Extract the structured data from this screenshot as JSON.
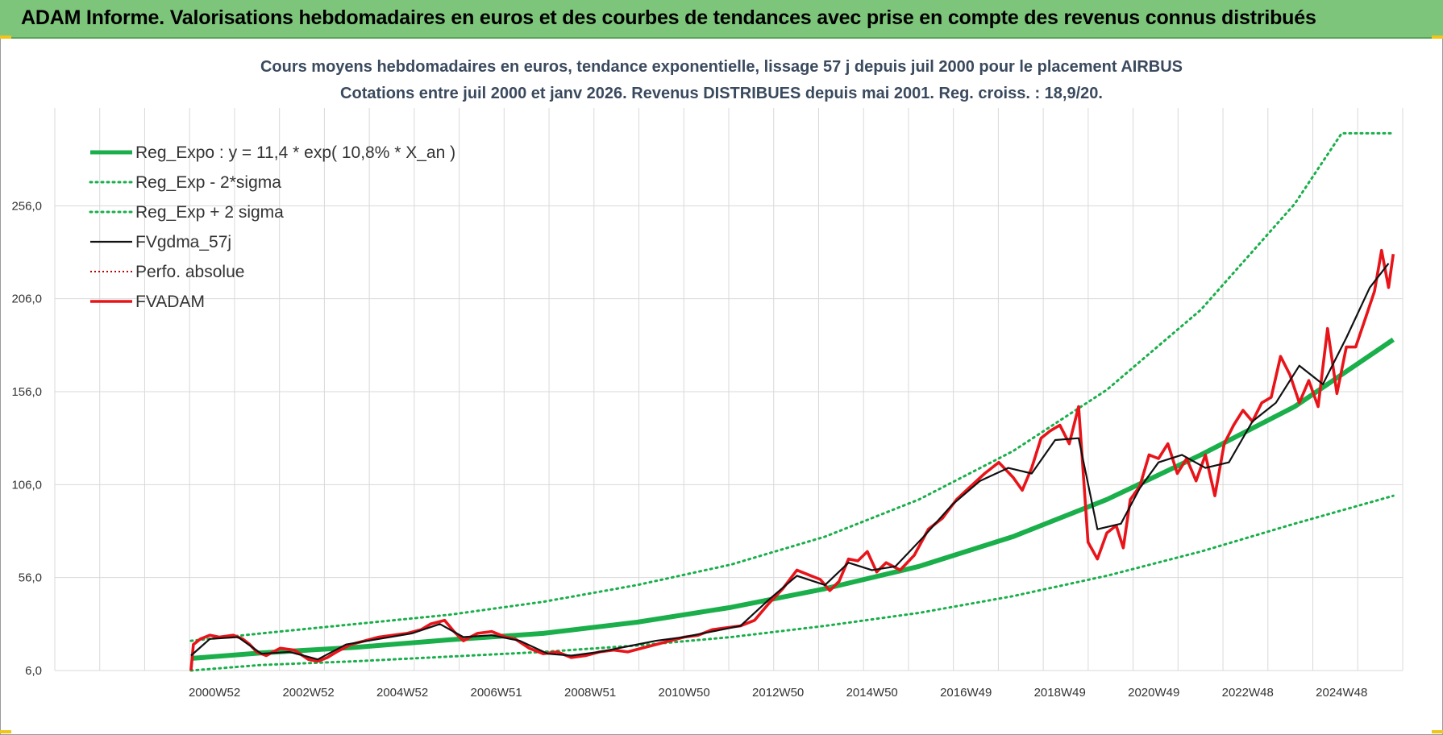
{
  "header": {
    "title": "ADAM Informe. Valorisations hebdomadaires en euros et des courbes de tendances avec prise en compte des revenus connus distribués"
  },
  "colors": {
    "header_bg": "#7dc57a",
    "trend": "#1aaf4b",
    "fvadam": "#e8141a",
    "moving_avg": "#111111",
    "perfo": "#c00000",
    "grid": "#d9d9d9"
  },
  "chart_data": {
    "type": "line",
    "title": "Cours moyens hebdomadaires en euros, tendance exponentielle, lissage 57 j depuis juil 2000 pour le placement AIRBUS",
    "subtitle": "Cotations entre juil 2000 et janv 2026. Revenus DISTRIBUES depuis mai 2001. Reg. croiss. : 18,9/20.",
    "xlabel": "",
    "ylabel": "",
    "x_unit": "year",
    "xlim": [
      1997.6,
      2026.3
    ],
    "ylim": [
      6,
      306
    ],
    "y_ticks": [
      "6,0",
      "56,0",
      "106,0",
      "156,0",
      "206,0",
      "256,0"
    ],
    "y_tick_values": [
      6,
      56,
      106,
      156,
      206,
      256
    ],
    "x_ticks": [
      "2000W52",
      "2002W52",
      "2004W52",
      "2006W51",
      "2008W51",
      "2010W50",
      "2012W50",
      "2014W50",
      "2016W49",
      "2018W49",
      "2020W49",
      "2022W48",
      "2024W48"
    ],
    "x_tick_values": [
      2001.0,
      2003.0,
      2005.0,
      2007.0,
      2009.0,
      2011.0,
      2013.0,
      2015.0,
      2017.0,
      2019.0,
      2021.0,
      2023.0,
      2025.0
    ],
    "grid": true,
    "legend_position": "top-left",
    "series": [
      {
        "name": "Reg_Expo : y = 11,4 * exp( 10,8% *  X_an )",
        "style": "solid-thick",
        "x": [
          2000.5,
          2002,
          2004,
          2006,
          2008,
          2010,
          2012,
          2014,
          2016,
          2018,
          2020,
          2022,
          2024,
          2026.1
        ],
        "y": [
          12.5,
          15.5,
          18.5,
          22.5,
          26,
          32,
          40,
          50,
          62,
          78,
          98,
          122,
          148,
          184
        ]
      },
      {
        "name": "Reg_Exp - 2*sigma",
        "style": "dotted",
        "x": [
          2000.5,
          2002,
          2004,
          2006,
          2008,
          2010,
          2012,
          2014,
          2016,
          2018,
          2020,
          2022,
          2024,
          2026.1
        ],
        "y": [
          6,
          9,
          11,
          13.5,
          16,
          19.5,
          24,
          30,
          37,
          46,
          57,
          70,
          85,
          100
        ]
      },
      {
        "name": "Reg_Exp + 2 sigma",
        "style": "dotted",
        "x": [
          2000.5,
          2002,
          2004,
          2006,
          2008,
          2010,
          2012,
          2014,
          2016,
          2018,
          2020,
          2022,
          2024,
          2025.0,
          2026.1
        ],
        "y": [
          22,
          26,
          31,
          36,
          43,
          52,
          63,
          78,
          98,
          124,
          157,
          200,
          257,
          295,
          295
        ]
      },
      {
        "name": "FVgdma_57j",
        "style": "solid-thin",
        "x": [
          2000.5,
          2000.9,
          2001.5,
          2002.0,
          2002.6,
          2003.2,
          2003.8,
          2004.5,
          2005.2,
          2005.8,
          2006.3,
          2006.9,
          2007.5,
          2008.1,
          2008.6,
          2009.2,
          2009.8,
          2010.4,
          2011.0,
          2011.6,
          2012.2,
          2012.8,
          2013.4,
          2014.0,
          2014.5,
          2015.0,
          2015.5,
          2016.1,
          2016.7,
          2017.3,
          2017.9,
          2018.4,
          2018.9,
          2019.4,
          2019.8,
          2020.3,
          2020.7,
          2021.1,
          2021.6,
          2022.1,
          2022.6,
          2023.1,
          2023.6,
          2024.1,
          2024.6,
          2025.1,
          2025.6,
          2026.0
        ],
        "y": [
          14,
          23,
          24,
          15,
          16,
          12,
          20,
          23,
          26,
          31,
          24,
          25,
          22,
          15,
          14,
          16,
          19,
          22,
          24,
          27,
          30,
          44,
          57,
          52,
          64,
          60,
          62,
          78,
          95,
          108,
          115,
          112,
          130,
          131,
          82,
          85,
          104,
          118,
          122,
          115,
          118,
          140,
          150,
          170,
          160,
          185,
          212,
          225
        ]
      },
      {
        "name": "Perfo. absolue",
        "style": "dotted",
        "x": [],
        "y": []
      },
      {
        "name": "FVADAM",
        "style": "solid-thick",
        "x": [
          2000.5,
          2000.55,
          2000.7,
          2000.9,
          2001.1,
          2001.4,
          2001.6,
          2001.75,
          2001.9,
          2002.1,
          2002.4,
          2002.7,
          2003.0,
          2003.2,
          2003.4,
          2003.6,
          2003.9,
          2004.2,
          2004.5,
          2004.8,
          2005.1,
          2005.4,
          2005.6,
          2005.9,
          2006.1,
          2006.3,
          2006.6,
          2006.9,
          2007.2,
          2007.4,
          2007.7,
          2008.0,
          2008.3,
          2008.6,
          2008.9,
          2009.2,
          2009.5,
          2009.8,
          2010.1,
          2010.4,
          2010.7,
          2011.0,
          2011.3,
          2011.6,
          2011.9,
          2012.2,
          2012.5,
          2012.8,
          2013.1,
          2013.4,
          2013.7,
          2013.9,
          2014.1,
          2014.3,
          2014.5,
          2014.7,
          2014.9,
          2015.1,
          2015.3,
          2015.6,
          2015.9,
          2016.2,
          2016.5,
          2016.8,
          2017.1,
          2017.4,
          2017.7,
          2018.0,
          2018.2,
          2018.4,
          2018.6,
          2018.8,
          2019.0,
          2019.2,
          2019.4,
          2019.6,
          2019.8,
          2020.0,
          2020.2,
          2020.35,
          2020.5,
          2020.7,
          2020.9,
          2021.1,
          2021.3,
          2021.5,
          2021.7,
          2021.9,
          2022.1,
          2022.3,
          2022.5,
          2022.7,
          2022.9,
          2023.1,
          2023.3,
          2023.5,
          2023.7,
          2023.9,
          2024.1,
          2024.3,
          2024.5,
          2024.7,
          2024.9,
          2025.1,
          2025.3,
          2025.5,
          2025.7,
          2025.85,
          2026.0,
          2026.1
        ],
        "y": [
          6,
          20,
          23,
          25,
          24,
          25,
          23,
          20,
          16,
          14,
          18,
          17,
          12,
          11,
          13,
          16,
          20,
          22,
          24,
          25,
          26,
          28,
          31,
          33,
          27,
          22,
          26,
          27,
          24,
          23,
          18,
          15,
          16,
          13,
          14,
          16,
          17,
          16,
          18,
          20,
          22,
          24,
          25,
          28,
          29,
          30,
          33,
          42,
          50,
          60,
          57,
          55,
          49,
          54,
          66,
          65,
          70,
          59,
          64,
          60,
          68,
          82,
          88,
          98,
          105,
          112,
          118,
          110,
          103,
          115,
          131,
          135,
          138,
          128,
          148,
          75,
          66,
          80,
          84,
          72,
          98,
          105,
          122,
          120,
          128,
          112,
          120,
          108,
          122,
          100,
          128,
          138,
          146,
          140,
          150,
          153,
          175,
          165,
          150,
          162,
          148,
          190,
          155,
          180,
          180,
          195,
          210,
          232,
          212,
          230
        ]
      }
    ]
  }
}
